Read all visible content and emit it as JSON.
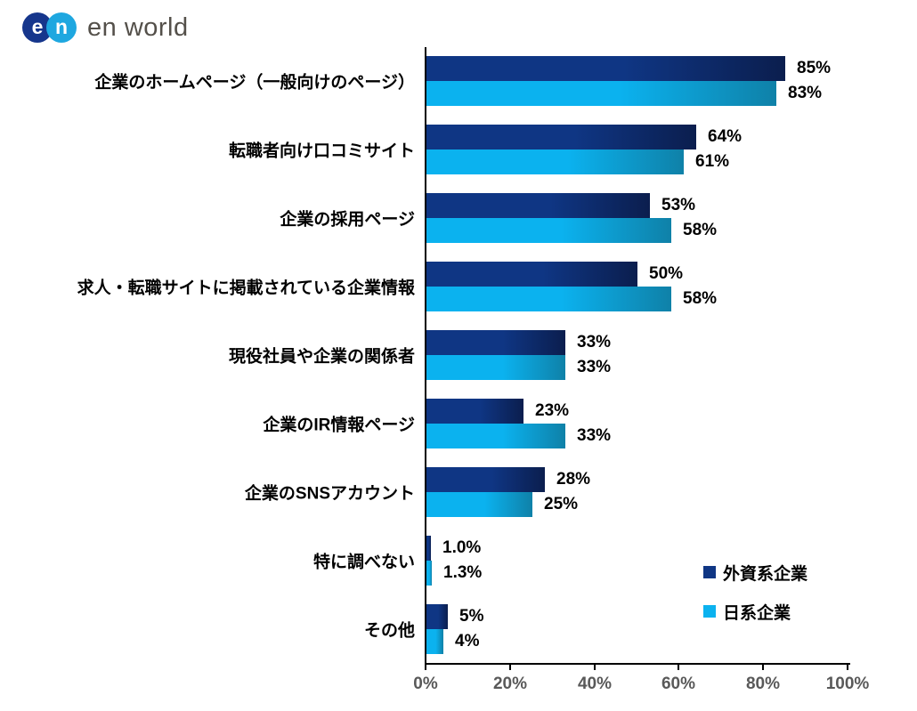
{
  "logo": {
    "badge_e": "e",
    "badge_n": "n",
    "text": "en world",
    "badge_e_color": "#16368c",
    "badge_n_color": "#1ea7e0"
  },
  "chart_data": {
    "type": "bar",
    "orientation": "horizontal",
    "title": "",
    "xlabel": "",
    "ylabel": "",
    "xlim": [
      0,
      100
    ],
    "grid": false,
    "legend_position": "bottom-right",
    "categories": [
      "企業のホームページ（一般向けのページ）",
      "転職者向け口コミサイト",
      "企業の採用ページ",
      "求人・転職サイトに掲載されている企業情報",
      "現役社員や企業の関係者",
      "企業のIR情報ページ",
      "企業のSNSアカウント",
      "特に調べない",
      "その他"
    ],
    "series": [
      {
        "name": "外資系企業",
        "values": [
          85,
          64,
          53,
          50,
          33,
          23,
          28,
          1.0,
          5
        ],
        "labels": [
          "85%",
          "64%",
          "53%",
          "50%",
          "33%",
          "23%",
          "28%",
          "1.0%",
          "5%"
        ],
        "color_start": "#0f3684",
        "color_end": "#0b1e4e"
      },
      {
        "name": "日系企業",
        "values": [
          83,
          61,
          58,
          58,
          33,
          33,
          25,
          1.3,
          4
        ],
        "labels": [
          "83%",
          "61%",
          "58%",
          "58%",
          "33%",
          "33%",
          "25%",
          "1.3%",
          "4%"
        ],
        "color_start": "#0bb2ef",
        "color_end": "#0f81a8"
      }
    ],
    "x_ticks": [
      "0%",
      "20%",
      "40%",
      "60%",
      "80%",
      "100%"
    ]
  }
}
